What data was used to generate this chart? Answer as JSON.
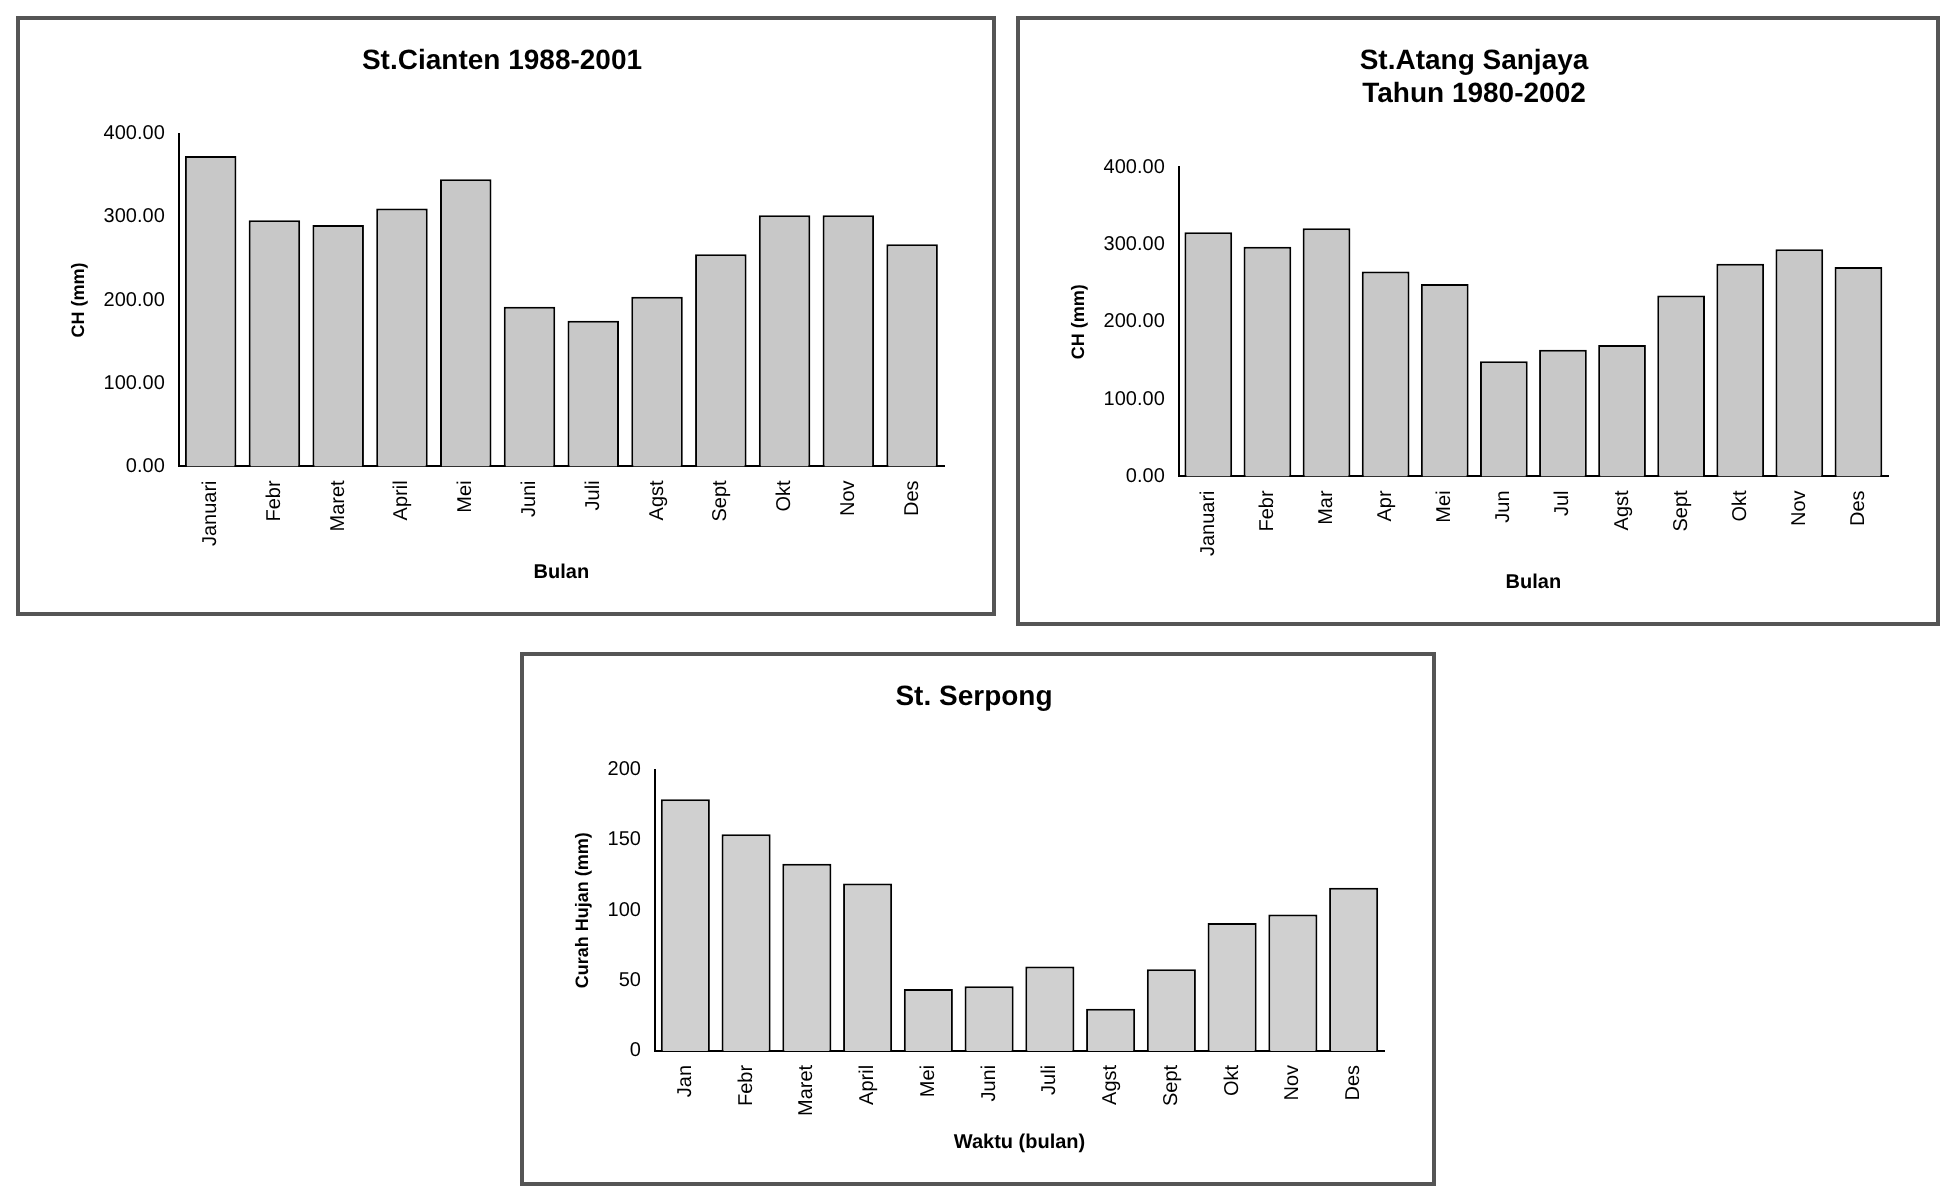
{
  "chart_data": [
    {
      "type": "bar",
      "title": "St.Cianten 1988-2001",
      "xlabel": "Bulan",
      "ylabel": "CH (mm)",
      "categories": [
        "Januari",
        "Febr",
        "Maret",
        "April",
        "Mei",
        "Juni",
        "Juli",
        "Agst",
        "Sept",
        "Okt",
        "Nov",
        "Des"
      ],
      "values": [
        373,
        296,
        290,
        310,
        345,
        192,
        175,
        204,
        255,
        302,
        302,
        267
      ],
      "color": "#c8c8c8",
      "ylim": [
        0,
        400
      ],
      "yticks": [
        {
          "value": 0,
          "label": "0.00"
        },
        {
          "value": 100,
          "label": "100.00"
        },
        {
          "value": 200,
          "label": "200.00"
        },
        {
          "value": 300,
          "label": "300.00"
        },
        {
          "value": 400,
          "label": "400.00"
        }
      ],
      "grid": false,
      "legend": false
    },
    {
      "type": "bar",
      "title": "St.Atang Sanjaya\nTahun 1980-2002",
      "xlabel": "Bulan",
      "ylabel": "CH (mm)",
      "categories": [
        "Januari",
        "Febr",
        "Mar",
        "Apr",
        "Mei",
        "Jun",
        "Jul",
        "Agst",
        "Sept",
        "Okt",
        "Nov",
        "Des"
      ],
      "values": [
        316,
        297,
        321,
        265,
        249,
        149,
        164,
        170,
        234,
        275,
        294,
        271
      ],
      "color": "#c8c8c8",
      "ylim": [
        0,
        400
      ],
      "yticks": [
        {
          "value": 0,
          "label": "0.00"
        },
        {
          "value": 100,
          "label": "100.00"
        },
        {
          "value": 200,
          "label": "200.00"
        },
        {
          "value": 300,
          "label": "300.00"
        },
        {
          "value": 400,
          "label": "400.00"
        }
      ],
      "grid": false,
      "legend": false
    },
    {
      "type": "bar",
      "title": "St. Serpong",
      "xlabel": "Waktu (bulan)",
      "ylabel": "Curah Hujan (mm)",
      "categories": [
        "Jan",
        "Febr",
        "Maret",
        "April",
        "Mei",
        "Juni",
        "Juli",
        "Agst",
        "Sept",
        "Okt",
        "Nov",
        "Des"
      ],
      "values": [
        179,
        154,
        133,
        119,
        44,
        46,
        60,
        30,
        58,
        91,
        97,
        116
      ],
      "color": "#d0d0d0",
      "ylim": [
        0,
        200
      ],
      "yticks": [
        0,
        50,
        100,
        150,
        200
      ],
      "grid": false,
      "legend": false
    }
  ]
}
